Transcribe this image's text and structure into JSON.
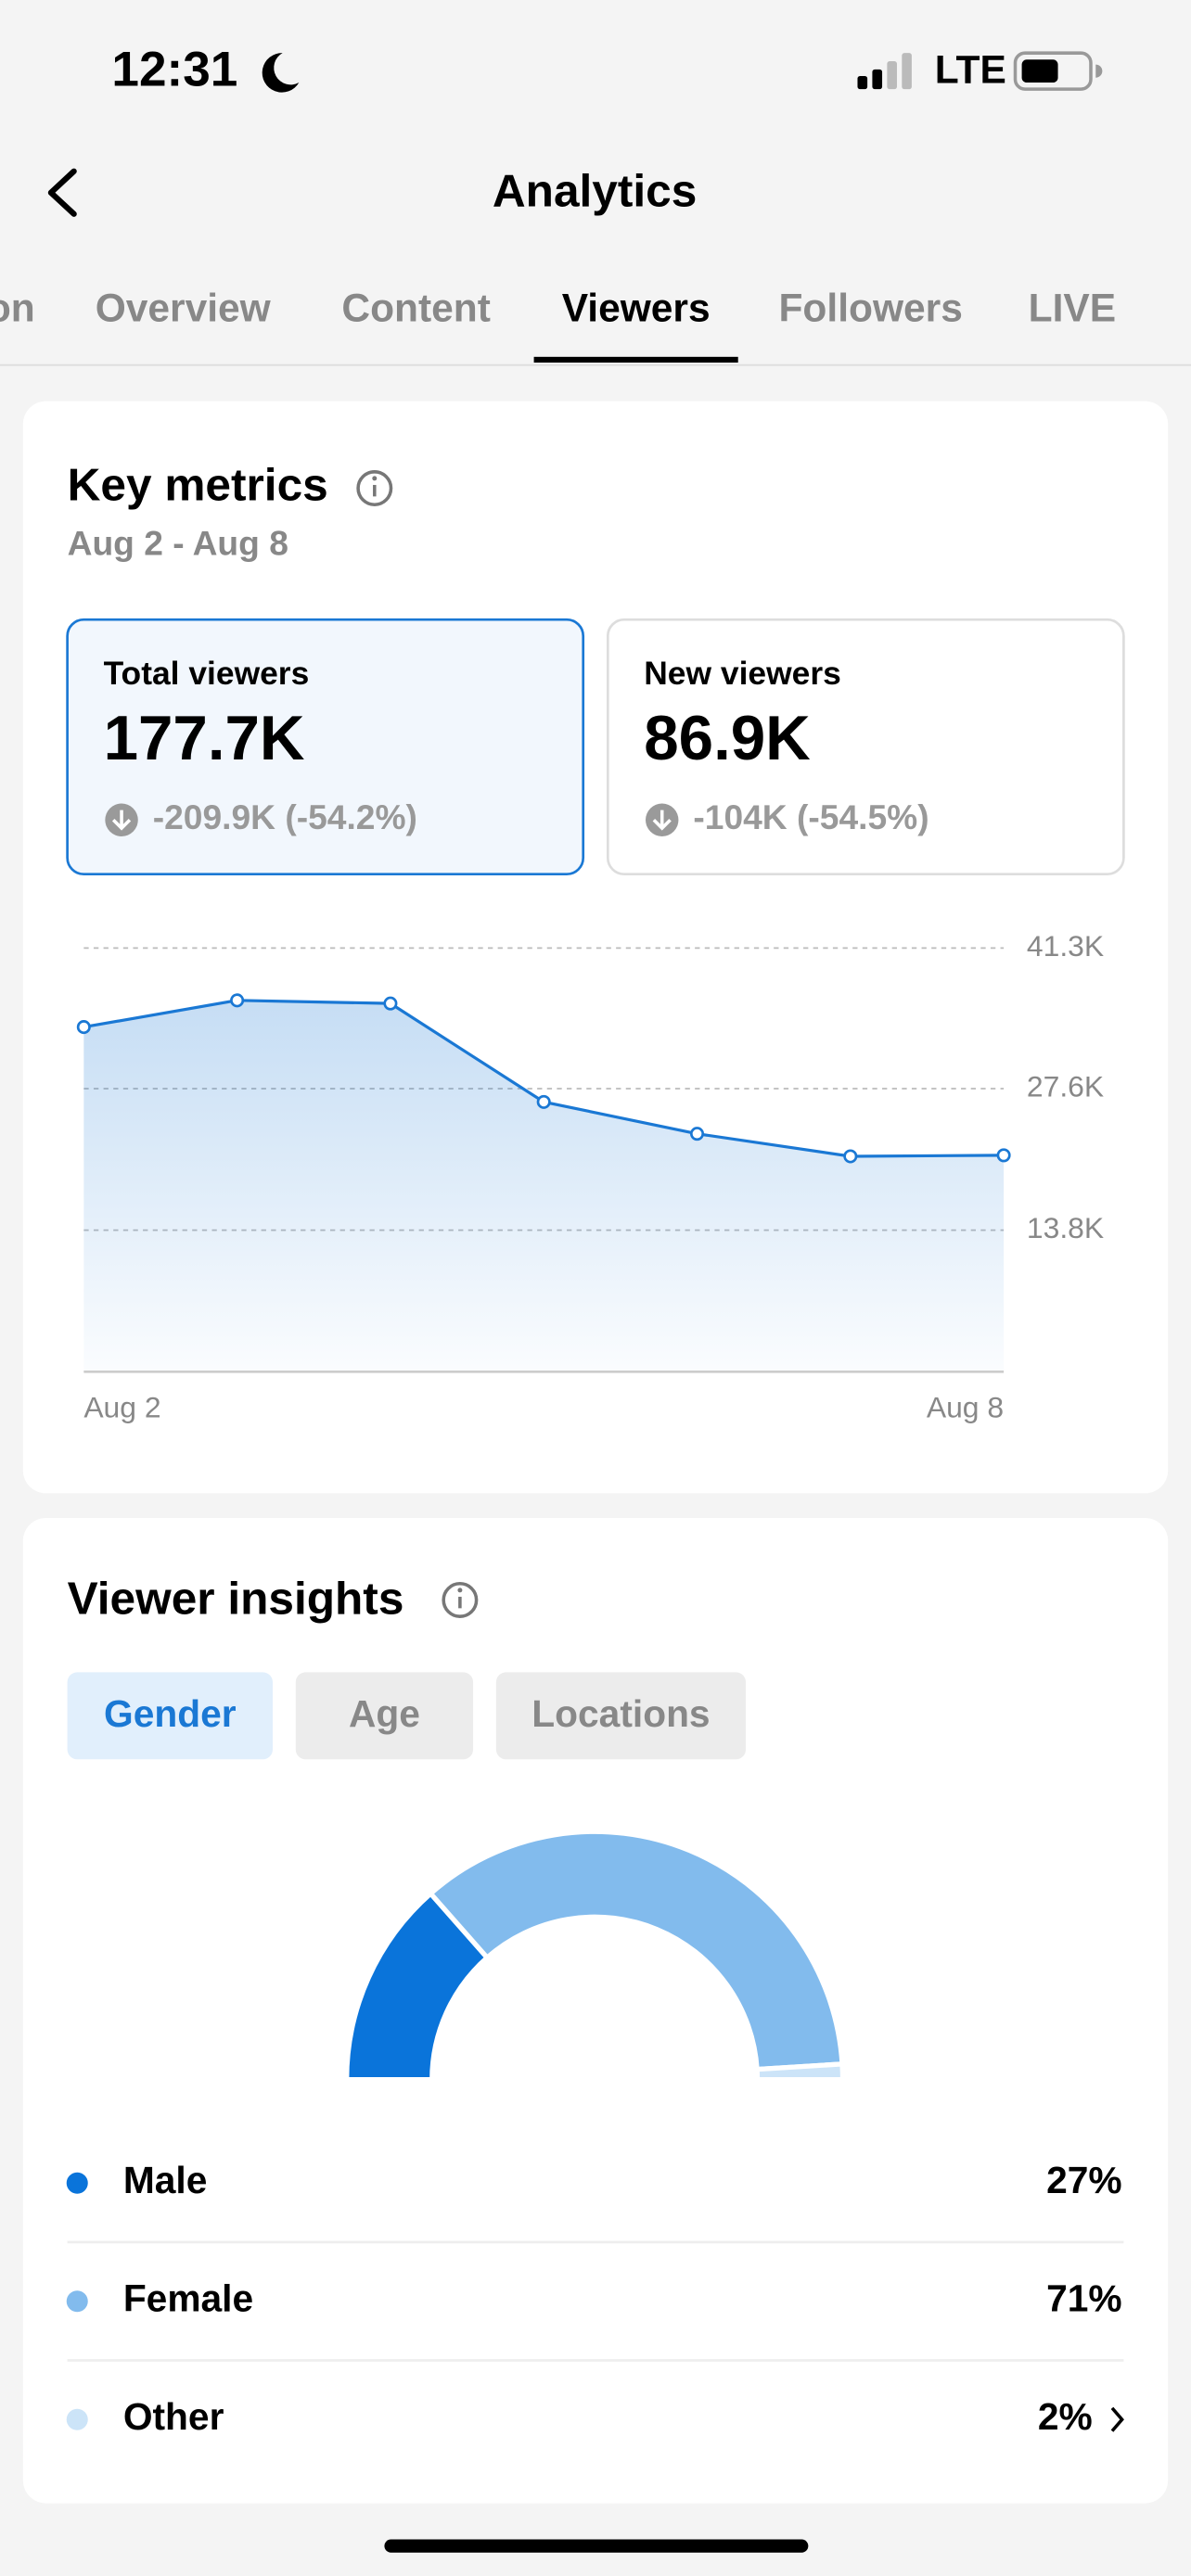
{
  "status_bar": {
    "time": "12:31",
    "network": "LTE"
  },
  "header": {
    "title": "Analytics"
  },
  "tabs": {
    "items": [
      "on",
      "Overview",
      "Content",
      "Viewers",
      "Followers",
      "LIVE"
    ],
    "active": "Viewers"
  },
  "key_metrics": {
    "title": "Key metrics",
    "date_range": "Aug 2 - Aug 8",
    "cards": [
      {
        "label": "Total viewers",
        "value": "177.7K",
        "change": "-209.9K (-54.2%)"
      },
      {
        "label": "New viewers",
        "value": "86.9K",
        "change": "-104K (-54.5%)"
      }
    ]
  },
  "viewer_insights": {
    "title": "Viewer insights",
    "filters": [
      "Gender",
      "Age",
      "Locations"
    ],
    "active_filter": "Gender"
  },
  "chart_data": [
    {
      "type": "line",
      "x": [
        "Aug 2",
        null,
        null,
        null,
        null,
        null,
        "Aug 8"
      ],
      "values": [
        33600,
        36200,
        35900,
        26300,
        23200,
        21000,
        21100
      ],
      "color": "#1a78d4",
      "ylim": [
        0,
        41300
      ],
      "yticks": [
        {
          "value": 13800,
          "label": "13.8K"
        },
        {
          "value": 27600,
          "label": "27.6K"
        },
        {
          "value": 41300,
          "label": "41.3K"
        }
      ],
      "grid": true
    },
    {
      "type": "pie",
      "categories": [
        "Male",
        "Female",
        "Other"
      ],
      "values": [
        27,
        71,
        2
      ],
      "value_labels": [
        "27%",
        "71%",
        "2%"
      ],
      "colors": [
        "#0a74da",
        "#82bbed",
        "#cce4f8"
      ]
    }
  ]
}
